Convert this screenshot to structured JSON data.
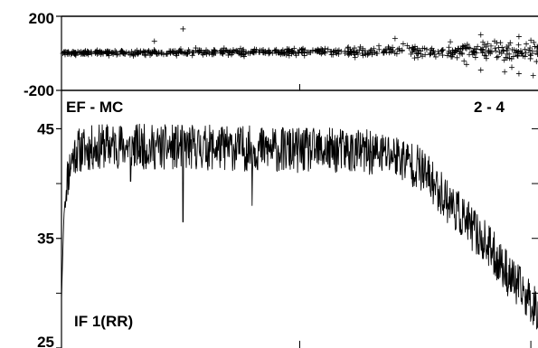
{
  "chart_data": [
    {
      "type": "scatter",
      "panel": "top",
      "marker": "plus",
      "title": "",
      "xlabel": "",
      "ylabel": "",
      "ylim": [
        -200,
        200
      ],
      "yticks": [
        200,
        -200
      ],
      "ytick_labels": [
        "200",
        "-200"
      ],
      "x_range": [
        0,
        1000
      ],
      "annotations": {
        "left": "EF - MC",
        "right": "2 - 4"
      },
      "trend": {
        "x": [
          0,
          200,
          400,
          600,
          800,
          1000
        ],
        "center": [
          0,
          5,
          8,
          10,
          12,
          15
        ],
        "spread": [
          10,
          15,
          15,
          20,
          30,
          55
        ]
      },
      "outliers": [
        {
          "x": 255,
          "y": 132
        },
        {
          "x": 195,
          "y": 65
        },
        {
          "x": 700,
          "y": 80
        },
        {
          "x": 880,
          "y": 100
        },
        {
          "x": 960,
          "y": 90
        },
        {
          "x": 985,
          "y": 70
        },
        {
          "x": 880,
          "y": -90
        },
        {
          "x": 930,
          "y": -100
        },
        {
          "x": 960,
          "y": -110
        },
        {
          "x": 990,
          "y": -120
        },
        {
          "x": 850,
          "y": -60
        },
        {
          "x": 945,
          "y": -75
        }
      ]
    },
    {
      "type": "line",
      "panel": "bottom",
      "title": "",
      "xlabel": "",
      "ylabel": "",
      "ylim": [
        25,
        48.5
      ],
      "yticks": [
        45,
        35,
        25
      ],
      "ytick_labels": [
        "45",
        "35",
        "25"
      ],
      "x_range": [
        0,
        1000
      ],
      "annotation": "IF 1(RR)",
      "trend": {
        "x": [
          0,
          5,
          10,
          20,
          30,
          60,
          100,
          200,
          300,
          400,
          500,
          600,
          700,
          750,
          800,
          850,
          900,
          950,
          1000
        ],
        "y": [
          29.5,
          37.0,
          40.0,
          42.0,
          43.0,
          43.2,
          43.5,
          43.3,
          43.3,
          43.2,
          43.0,
          43.0,
          42.6,
          41.5,
          39.0,
          36.5,
          34.0,
          31.0,
          28.5
        ]
      },
      "noise_amplitude": 1.3,
      "dips": [
        {
          "x": 255,
          "y": 36.5
        },
        {
          "x": 400,
          "y": 38.0
        },
        {
          "x": 145,
          "y": 40.2
        }
      ]
    }
  ]
}
